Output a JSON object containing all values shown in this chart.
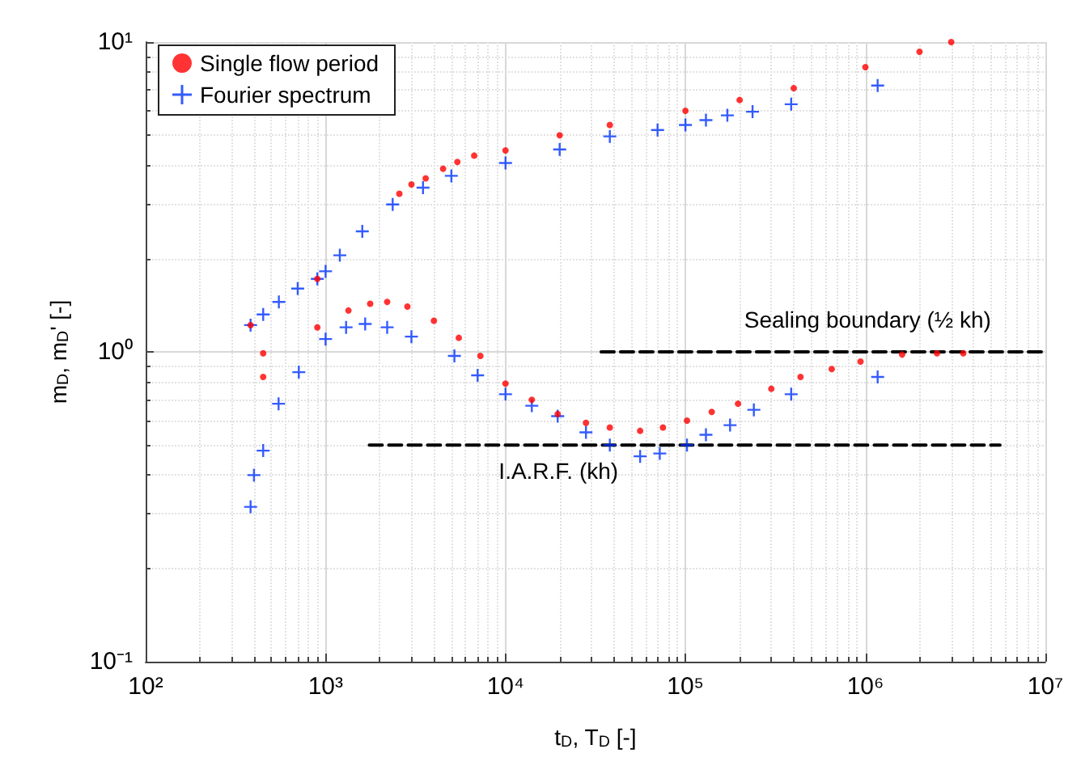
{
  "chart_data": {
    "type": "scatter",
    "xlabel": "t$_{D}$, T$_{D}$ [-]",
    "ylabel": "m$_{D}$, m$_{D}$' [-]",
    "log": "xy",
    "grid": true,
    "legend": "top left",
    "xlim": [
      100,
      10000000
    ],
    "xticks": [
      {
        "value": 100,
        "label": "10²"
      },
      {
        "value": 1000,
        "label": "10³"
      },
      {
        "value": 10000,
        "label": "10⁴"
      },
      {
        "value": 100000,
        "label": "10⁵"
      },
      {
        "value": 1000000,
        "label": "10⁶"
      },
      {
        "value": 10000000,
        "label": "10⁷"
      }
    ],
    "ylim": [
      0.1,
      10
    ],
    "yticks": [
      {
        "value": 0.1,
        "label": "10⁻¹"
      },
      {
        "value": 1,
        "label": "10⁰"
      },
      {
        "value": 10,
        "label": "10¹"
      }
    ],
    "series": [
      {
        "name": "Single flow period",
        "color": "#ff0000",
        "marker": "circle",
        "x": [
          383,
          900,
          2570,
          3000,
          3600,
          4500,
          5400,
          6700,
          10000,
          20000,
          38000,
          100000,
          200000,
          400000,
          1000000,
          2000000,
          3000000,
          450,
          450,
          900,
          1340,
          1770,
          2200,
          2850,
          4000,
          5500,
          7250,
          10000,
          14000,
          19500,
          28000,
          38000,
          56000,
          75000,
          102000,
          140000,
          196000,
          300000,
          436000,
          650000,
          940000,
          1600000,
          2500000,
          3500000
        ],
        "values": [
          1.22,
          1.72,
          3.24,
          3.47,
          3.63,
          3.9,
          4.1,
          4.3,
          4.47,
          5.0,
          5.4,
          6.0,
          6.5,
          7.1,
          8.3,
          9.3,
          10,
          0.83,
          0.99,
          1.2,
          1.36,
          1.43,
          1.45,
          1.4,
          1.26,
          1.11,
          0.97,
          0.79,
          0.7,
          0.63,
          0.59,
          0.57,
          0.556,
          0.57,
          0.6,
          0.64,
          0.68,
          0.76,
          0.83,
          0.88,
          0.93,
          0.98,
          0.99,
          0.99
        ]
      },
      {
        "name": "Fourier spectrum",
        "color": "#0033ff",
        "marker": "cross",
        "x": [
          383,
          450,
          550,
          700,
          900,
          1000,
          1200,
          1600,
          2360,
          3480,
          5000,
          10000,
          20000,
          38000,
          70000,
          100000,
          130000,
          171000,
          236000,
          387000,
          1170000,
          383,
          400,
          450,
          548,
          710,
          1000,
          1300,
          1660,
          2200,
          3000,
          5200,
          7000,
          10000,
          14000,
          19500,
          28000,
          38000,
          56000,
          72000,
          102000,
          130000,
          177000,
          240000,
          387000,
          1170000
        ],
        "values": [
          1.22,
          1.32,
          1.45,
          1.6,
          1.72,
          1.82,
          2.05,
          2.45,
          2.99,
          3.39,
          3.7,
          4.07,
          4.5,
          4.96,
          5.2,
          5.4,
          5.6,
          5.8,
          5.96,
          6.3,
          7.24,
          0.316,
          0.4,
          0.48,
          0.68,
          0.86,
          1.1,
          1.2,
          1.23,
          1.2,
          1.12,
          0.97,
          0.84,
          0.73,
          0.67,
          0.62,
          0.55,
          0.5,
          0.46,
          0.47,
          0.5,
          0.54,
          0.58,
          0.65,
          0.73,
          0.83
        ]
      },
      {
        "type": "line",
        "color": "#000000",
        "marker": "none",
        "line_style": "dashed",
        "x": [
          34000,
          10000000
        ],
        "values": [
          1,
          1
        ]
      },
      {
        "type": "line",
        "color": "#000000",
        "marker": "none",
        "line_style": "dashed",
        "x": [
          1750,
          5600000
        ],
        "values": [
          0.5,
          0.5
        ]
      }
    ],
    "annotations": [
      "Sealing boundary (½ kh)",
      "I.A.R.F. (kh)"
    ]
  }
}
